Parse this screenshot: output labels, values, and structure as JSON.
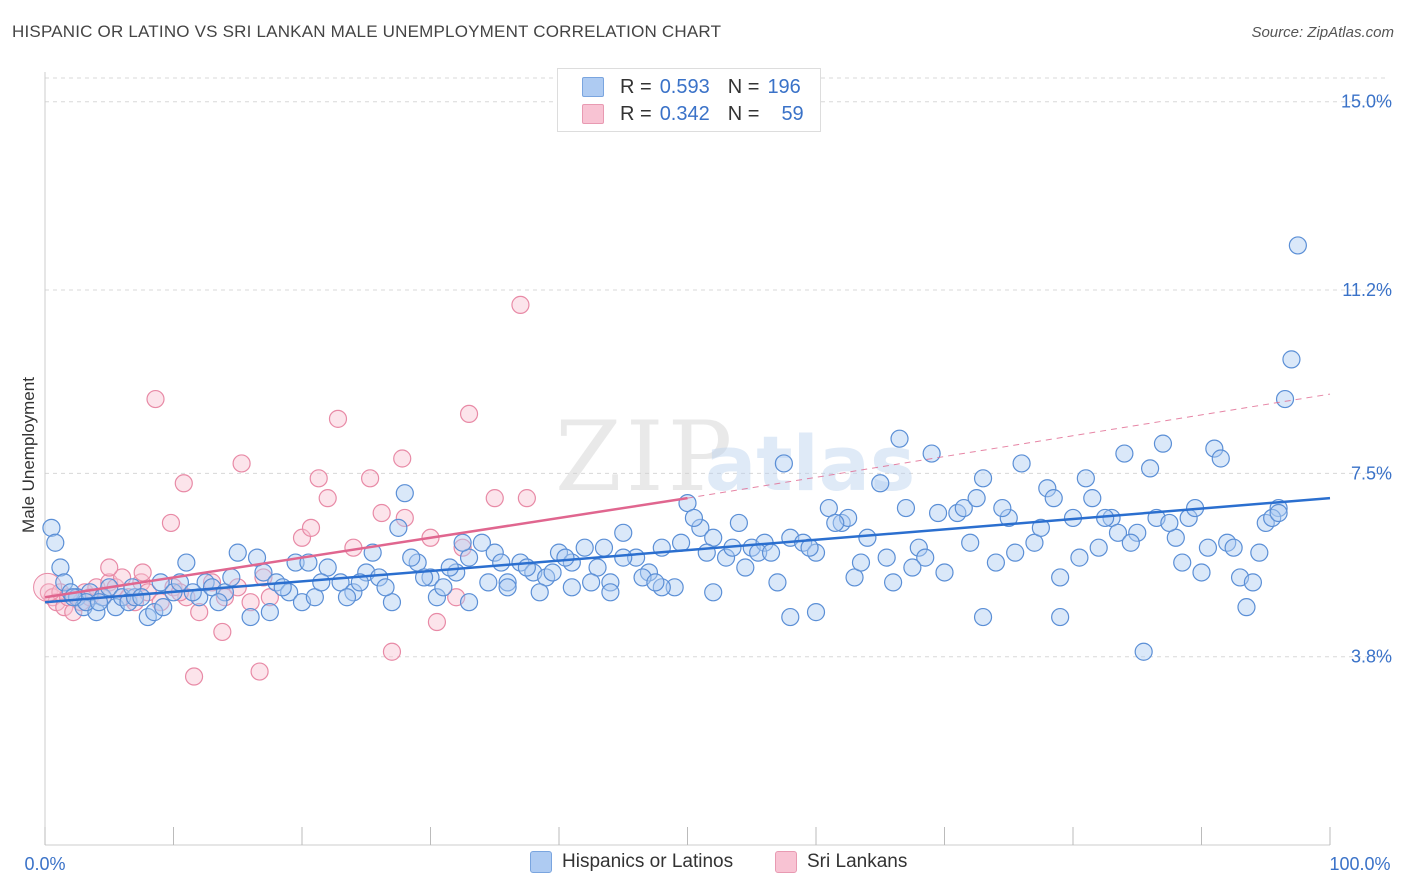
{
  "title": "HISPANIC OR LATINO VS SRI LANKAN MALE UNEMPLOYMENT CORRELATION CHART",
  "source": "Source: ZipAtlas.com",
  "watermark": {
    "zip": "ZIP",
    "atlas": "atlas"
  },
  "legend": {
    "rows": [
      {
        "r_label": "R =",
        "r_value": "0.593",
        "n_label": "N =",
        "n_value": "196"
      },
      {
        "r_label": "R =",
        "r_value": "0.342",
        "n_label": "N =",
        "n_value": "59"
      }
    ]
  },
  "bottom_legend": [
    "Hispanics or Latinos",
    "Sri Lankans"
  ],
  "colors": {
    "blue_fill": "#aecbf2",
    "blue_stroke": "#5b8fd6",
    "blue_line": "#2b6fcf",
    "pink_fill": "#f8c3d3",
    "pink_stroke": "#e88aa6",
    "pink_line": "#e0668f",
    "tick_label": "#3a72c8",
    "grid": "#d8d8d8"
  },
  "chart_data": {
    "type": "scatter",
    "title": "HISPANIC OR LATINO VS SRI LANKAN MALE UNEMPLOYMENT CORRELATION CHART",
    "xlabel": "",
    "ylabel": "Male Unemployment",
    "xlim": [
      0,
      100
    ],
    "ylim": [
      0,
      15.6
    ],
    "x_tick_labels": [
      "0.0%",
      "100.0%"
    ],
    "y_ticks": [
      3.8,
      7.5,
      11.2,
      15.0
    ],
    "y_tick_labels": [
      "3.8%",
      "7.5%",
      "11.2%",
      "15.0%"
    ],
    "grid": "horizontal dashed",
    "legend_position": "top-center",
    "series": [
      {
        "name": "Hispanics or Latinos",
        "r": 0.593,
        "n": 196,
        "trend": {
          "x": [
            0,
            100
          ],
          "y": [
            4.9,
            7.0
          ]
        },
        "points": [
          [
            0.5,
            6.4
          ],
          [
            0.8,
            6.1
          ],
          [
            1.2,
            5.6
          ],
          [
            1.5,
            5.3
          ],
          [
            2.0,
            5.1
          ],
          [
            2.5,
            5.0
          ],
          [
            3.0,
            4.8
          ],
          [
            3.5,
            5.1
          ],
          [
            4.0,
            4.7
          ],
          [
            4.5,
            5.0
          ],
          [
            5.0,
            5.2
          ],
          [
            5.5,
            4.8
          ],
          [
            6.0,
            5.0
          ],
          [
            6.5,
            4.9
          ],
          [
            7.0,
            5.0
          ],
          [
            8.0,
            4.6
          ],
          [
            8.5,
            4.7
          ],
          [
            9.0,
            5.3
          ],
          [
            10.0,
            5.1
          ],
          [
            10.5,
            5.3
          ],
          [
            11.0,
            5.7
          ],
          [
            12.0,
            5.0
          ],
          [
            12.5,
            5.3
          ],
          [
            13.0,
            5.2
          ],
          [
            14.0,
            5.1
          ],
          [
            15.0,
            5.9
          ],
          [
            16.0,
            4.6
          ],
          [
            17.0,
            5.5
          ],
          [
            18.0,
            5.3
          ],
          [
            19.0,
            5.1
          ],
          [
            19.5,
            5.7
          ],
          [
            20.0,
            4.9
          ],
          [
            21.0,
            5.0
          ],
          [
            22.0,
            5.6
          ],
          [
            23.0,
            5.3
          ],
          [
            24.0,
            5.1
          ],
          [
            25.0,
            5.5
          ],
          [
            26.0,
            5.4
          ],
          [
            27.0,
            4.9
          ],
          [
            27.5,
            6.4
          ],
          [
            28.0,
            7.1
          ],
          [
            29.0,
            5.7
          ],
          [
            30.0,
            5.4
          ],
          [
            30.5,
            5.0
          ],
          [
            31.0,
            5.2
          ],
          [
            32.0,
            5.5
          ],
          [
            33.0,
            5.8
          ],
          [
            34.0,
            6.1
          ],
          [
            35.0,
            5.9
          ],
          [
            36.0,
            5.3
          ],
          [
            37.0,
            5.7
          ],
          [
            38.0,
            5.5
          ],
          [
            39.0,
            5.4
          ],
          [
            40.0,
            5.9
          ],
          [
            41.0,
            5.2
          ],
          [
            42.0,
            6.0
          ],
          [
            43.0,
            5.6
          ],
          [
            44.0,
            5.3
          ],
          [
            45.0,
            6.3
          ],
          [
            46.0,
            5.8
          ],
          [
            47.0,
            5.5
          ],
          [
            48.0,
            6.0
          ],
          [
            49.0,
            5.2
          ],
          [
            50.0,
            6.9
          ],
          [
            51.0,
            6.4
          ],
          [
            52.0,
            6.2
          ],
          [
            53.0,
            5.8
          ],
          [
            54.0,
            6.5
          ],
          [
            55.0,
            6.0
          ],
          [
            56.0,
            6.1
          ],
          [
            57.0,
            5.3
          ],
          [
            57.5,
            7.7
          ],
          [
            58.0,
            6.2
          ],
          [
            59.0,
            6.1
          ],
          [
            60.0,
            5.9
          ],
          [
            61.0,
            6.8
          ],
          [
            62.0,
            6.5
          ],
          [
            63.0,
            5.4
          ],
          [
            64.0,
            6.2
          ],
          [
            65.0,
            7.3
          ],
          [
            66.0,
            5.3
          ],
          [
            66.5,
            8.2
          ],
          [
            67.0,
            6.8
          ],
          [
            68.0,
            6.0
          ],
          [
            69.0,
            7.9
          ],
          [
            70.0,
            5.5
          ],
          [
            71.0,
            6.7
          ],
          [
            72.0,
            6.1
          ],
          [
            73.0,
            7.4
          ],
          [
            74.0,
            5.7
          ],
          [
            75.0,
            6.6
          ],
          [
            76.0,
            7.7
          ],
          [
            77.0,
            6.1
          ],
          [
            78.0,
            7.2
          ],
          [
            79.0,
            5.4
          ],
          [
            80.0,
            6.6
          ],
          [
            81.0,
            7.4
          ],
          [
            82.0,
            6.0
          ],
          [
            83.0,
            6.6
          ],
          [
            84.0,
            7.9
          ],
          [
            85.0,
            6.3
          ],
          [
            85.5,
            3.9
          ],
          [
            86.0,
            7.6
          ],
          [
            87.0,
            8.1
          ],
          [
            88.0,
            6.2
          ],
          [
            89.0,
            6.6
          ],
          [
            90.0,
            5.5
          ],
          [
            91.0,
            8.0
          ],
          [
            91.5,
            7.8
          ],
          [
            92.0,
            6.1
          ],
          [
            93.0,
            5.4
          ],
          [
            93.5,
            4.8
          ],
          [
            94.0,
            5.3
          ],
          [
            95.0,
            6.5
          ],
          [
            96.0,
            6.8
          ],
          [
            96.5,
            9.0
          ],
          [
            97.0,
            9.8
          ],
          [
            97.5,
            12.1
          ],
          [
            73.0,
            4.6
          ],
          [
            58.0,
            4.6
          ],
          [
            60.0,
            4.7
          ],
          [
            79.0,
            4.6
          ],
          [
            48.0,
            5.2
          ],
          [
            52.0,
            5.1
          ],
          [
            44.0,
            5.1
          ],
          [
            33.0,
            4.9
          ],
          [
            36.0,
            5.2
          ],
          [
            41.0,
            5.7
          ],
          [
            45.0,
            5.8
          ],
          [
            55.5,
            5.9
          ],
          [
            62.5,
            6.6
          ],
          [
            68.5,
            5.8
          ],
          [
            71.5,
            6.8
          ],
          [
            74.5,
            6.8
          ],
          [
            80.5,
            5.8
          ],
          [
            82.5,
            6.6
          ],
          [
            86.5,
            6.6
          ],
          [
            88.5,
            5.7
          ],
          [
            90.5,
            6.0
          ],
          [
            94.5,
            5.9
          ],
          [
            3.2,
            4.9
          ],
          [
            6.8,
            5.2
          ],
          [
            9.2,
            4.8
          ],
          [
            13.5,
            4.9
          ],
          [
            16.5,
            5.8
          ],
          [
            18.5,
            5.2
          ],
          [
            20.5,
            5.7
          ],
          [
            23.5,
            5.0
          ],
          [
            25.5,
            5.9
          ],
          [
            26.5,
            5.2
          ],
          [
            29.5,
            5.4
          ],
          [
            31.5,
            5.6
          ],
          [
            34.5,
            5.3
          ],
          [
            37.5,
            5.6
          ],
          [
            39.5,
            5.5
          ],
          [
            43.5,
            6.0
          ],
          [
            46.5,
            5.4
          ],
          [
            49.5,
            6.1
          ],
          [
            51.5,
            5.9
          ],
          [
            53.5,
            6.0
          ],
          [
            56.5,
            5.9
          ],
          [
            59.5,
            6.0
          ],
          [
            61.5,
            6.5
          ],
          [
            63.5,
            5.7
          ],
          [
            65.5,
            5.8
          ],
          [
            67.5,
            5.6
          ],
          [
            69.5,
            6.7
          ],
          [
            72.5,
            7.0
          ],
          [
            75.5,
            5.9
          ],
          [
            77.5,
            6.4
          ],
          [
            78.5,
            7.0
          ],
          [
            81.5,
            7.0
          ],
          [
            83.5,
            6.3
          ],
          [
            84.5,
            6.1
          ],
          [
            87.5,
            6.5
          ],
          [
            89.5,
            6.8
          ],
          [
            92.5,
            6.0
          ],
          [
            95.5,
            6.6
          ],
          [
            96.0,
            6.7
          ],
          [
            2.2,
            5.0
          ],
          [
            4.2,
            4.9
          ],
          [
            7.5,
            5.0
          ],
          [
            11.5,
            5.1
          ],
          [
            14.5,
            5.4
          ],
          [
            17.5,
            4.7
          ],
          [
            21.5,
            5.3
          ],
          [
            24.5,
            5.3
          ],
          [
            28.5,
            5.8
          ],
          [
            32.5,
            6.1
          ],
          [
            35.5,
            5.7
          ],
          [
            38.5,
            5.1
          ],
          [
            40.5,
            5.8
          ],
          [
            42.5,
            5.3
          ],
          [
            47.5,
            5.3
          ],
          [
            50.5,
            6.6
          ],
          [
            54.5,
            5.6
          ]
        ]
      },
      {
        "name": "Sri Lankans",
        "r": 0.342,
        "n": 59,
        "trend": {
          "x": [
            0,
            50
          ],
          "y": [
            5.0,
            7.0
          ]
        },
        "trend_extension": {
          "x": [
            50,
            100
          ],
          "y": [
            7.0,
            9.1
          ]
        },
        "points": [
          [
            0.3,
            5.1
          ],
          [
            0.6,
            5.0
          ],
          [
            0.9,
            4.9
          ],
          [
            1.2,
            5.1
          ],
          [
            1.5,
            4.8
          ],
          [
            1.8,
            5.0
          ],
          [
            2.2,
            4.7
          ],
          [
            2.5,
            5.0
          ],
          [
            2.8,
            4.9
          ],
          [
            3.1,
            5.1
          ],
          [
            3.5,
            5.0
          ],
          [
            4.0,
            5.2
          ],
          [
            4.5,
            5.0
          ],
          [
            5.0,
            5.3
          ],
          [
            5.5,
            5.2
          ],
          [
            6.0,
            5.4
          ],
          [
            6.5,
            5.0
          ],
          [
            7.0,
            4.9
          ],
          [
            7.5,
            5.3
          ],
          [
            8.0,
            5.1
          ],
          [
            9.0,
            4.9
          ],
          [
            10.0,
            5.2
          ],
          [
            11.0,
            5.0
          ],
          [
            12.0,
            4.7
          ],
          [
            13.0,
            5.3
          ],
          [
            14.0,
            5.0
          ],
          [
            15.0,
            5.2
          ],
          [
            16.0,
            4.9
          ],
          [
            17.0,
            5.4
          ],
          [
            5.0,
            5.6
          ],
          [
            7.6,
            5.5
          ],
          [
            10.5,
            5.1
          ],
          [
            13.8,
            4.3
          ],
          [
            17.5,
            5.0
          ],
          [
            9.8,
            6.5
          ],
          [
            20.0,
            6.2
          ],
          [
            22.0,
            7.0
          ],
          [
            24.0,
            6.0
          ],
          [
            28.0,
            6.6
          ],
          [
            30.0,
            6.2
          ],
          [
            32.5,
            6.0
          ],
          [
            35.0,
            7.0
          ],
          [
            37.5,
            7.0
          ],
          [
            8.6,
            9.0
          ],
          [
            10.8,
            7.3
          ],
          [
            15.3,
            7.7
          ],
          [
            20.7,
            6.4
          ],
          [
            21.3,
            7.4
          ],
          [
            22.8,
            8.6
          ],
          [
            25.3,
            7.4
          ],
          [
            26.2,
            6.7
          ],
          [
            27.8,
            7.8
          ],
          [
            33.0,
            8.7
          ],
          [
            37.0,
            10.9
          ],
          [
            32.0,
            5.0
          ],
          [
            30.5,
            4.5
          ],
          [
            27.0,
            3.9
          ],
          [
            11.6,
            3.4
          ],
          [
            16.7,
            3.5
          ]
        ]
      }
    ]
  }
}
